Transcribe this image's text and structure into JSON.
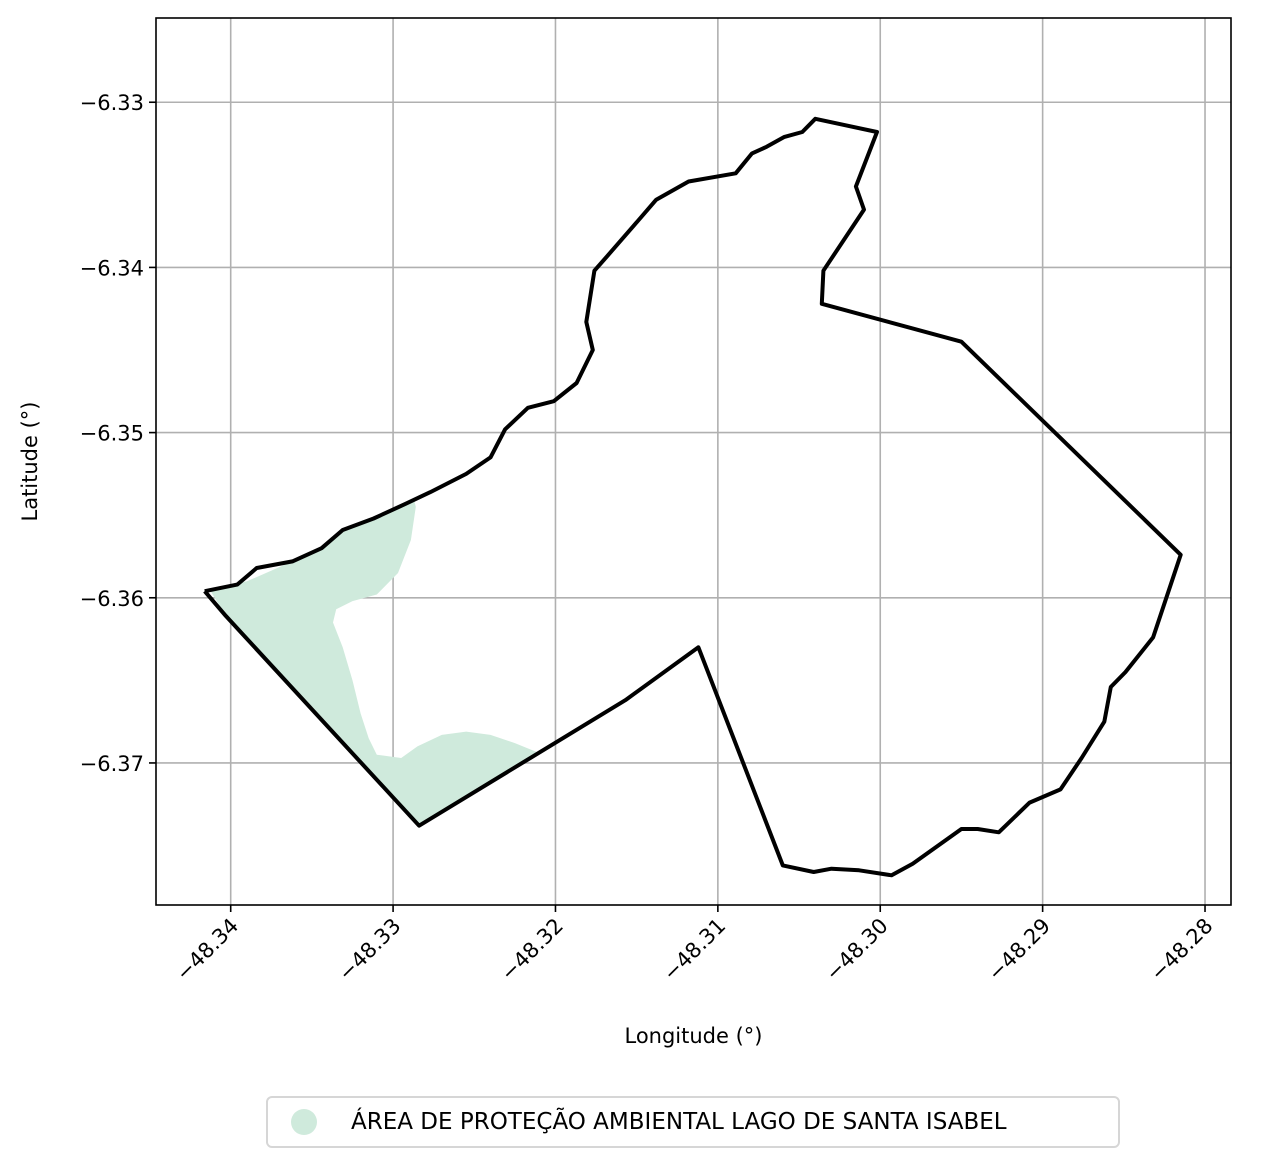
{
  "chart_data": {
    "type": "map",
    "xlabel": "Longitude (°)",
    "ylabel": "Latitude (°)",
    "xlim": [
      -48.3446,
      -48.2784
    ],
    "ylim": [
      -6.3786,
      -6.3249
    ],
    "grid": true,
    "x_ticks": [
      {
        "value": -48.34,
        "label": "−48.34"
      },
      {
        "value": -48.33,
        "label": "−48.33"
      },
      {
        "value": -48.32,
        "label": "−48.32"
      },
      {
        "value": -48.31,
        "label": "−48.31"
      },
      {
        "value": -48.3,
        "label": "−48.30"
      },
      {
        "value": -48.29,
        "label": "−48.29"
      },
      {
        "value": -48.28,
        "label": "−48.28"
      }
    ],
    "y_ticks": [
      {
        "value": -6.33,
        "label": "−6.33"
      },
      {
        "value": -6.34,
        "label": "−6.34"
      },
      {
        "value": -6.35,
        "label": "−6.35"
      },
      {
        "value": -6.36,
        "label": "−6.36"
      },
      {
        "value": -6.37,
        "label": "−6.37"
      }
    ],
    "boundary": {
      "color": "#000000",
      "coordinates": [
        [
          -48.3416,
          -6.3596
        ],
        [
          -48.3396,
          -6.3592
        ],
        [
          -48.3384,
          -6.3582
        ],
        [
          -48.3362,
          -6.3578
        ],
        [
          -48.3344,
          -6.357
        ],
        [
          -48.3331,
          -6.3559
        ],
        [
          -48.3312,
          -6.3552
        ],
        [
          -48.3292,
          -6.3543
        ],
        [
          -48.3277,
          -6.3536
        ],
        [
          -48.3255,
          -6.3525
        ],
        [
          -48.324,
          -6.3515
        ],
        [
          -48.3231,
          -6.3498
        ],
        [
          -48.3217,
          -6.3485
        ],
        [
          -48.3201,
          -6.3481
        ],
        [
          -48.3187,
          -6.347
        ],
        [
          -48.3177,
          -6.345
        ],
        [
          -48.3181,
          -6.3433
        ],
        [
          -48.3176,
          -6.3402
        ],
        [
          -48.3168,
          -6.3393
        ],
        [
          -48.3152,
          -6.3375
        ],
        [
          -48.3138,
          -6.3359
        ],
        [
          -48.3118,
          -6.3348
        ],
        [
          -48.3089,
          -6.3343
        ],
        [
          -48.3079,
          -6.3331
        ],
        [
          -48.307,
          -6.3327
        ],
        [
          -48.3059,
          -6.3321
        ],
        [
          -48.3048,
          -6.3318
        ],
        [
          -48.304,
          -6.331
        ],
        [
          -48.3002,
          -6.3318
        ],
        [
          -48.3015,
          -6.3351
        ],
        [
          -48.301,
          -6.3365
        ],
        [
          -48.3035,
          -6.3402
        ],
        [
          -48.3036,
          -6.3422
        ],
        [
          -48.295,
          -6.3445
        ],
        [
          -48.2815,
          -6.3574
        ],
        [
          -48.2832,
          -6.3624
        ],
        [
          -48.2849,
          -6.3645
        ],
        [
          -48.2858,
          -6.3654
        ],
        [
          -48.2862,
          -6.3675
        ],
        [
          -48.2876,
          -6.3697
        ],
        [
          -48.2889,
          -6.3716
        ],
        [
          -48.2908,
          -6.3724
        ],
        [
          -48.2927,
          -6.3742
        ],
        [
          -48.294,
          -6.374
        ],
        [
          -48.295,
          -6.374
        ],
        [
          -48.298,
          -6.3761
        ],
        [
          -48.2993,
          -6.3768
        ],
        [
          -48.3013,
          -6.3765
        ],
        [
          -48.303,
          -6.3764
        ],
        [
          -48.3041,
          -6.3766
        ],
        [
          -48.306,
          -6.3762
        ],
        [
          -48.3112,
          -6.363
        ],
        [
          -48.3157,
          -6.3662
        ],
        [
          -48.3284,
          -6.3738
        ],
        [
          -48.3403,
          -6.3611
        ],
        [
          -48.3416,
          -6.3596
        ]
      ]
    },
    "protected_area": {
      "name": "ÁREA DE PROTEÇÃO AMBIENTAL LAGO DE SANTA ISABEL",
      "color": "#cfeadc",
      "coordinates": [
        [
          -48.3413,
          -6.3595
        ],
        [
          -48.339,
          -6.359
        ],
        [
          -48.3362,
          -6.3578
        ],
        [
          -48.3344,
          -6.357
        ],
        [
          -48.3331,
          -6.3559
        ],
        [
          -48.3312,
          -6.3552
        ],
        [
          -48.3292,
          -6.3543
        ],
        [
          -48.3287,
          -6.3541
        ],
        [
          -48.3286,
          -6.3545
        ],
        [
          -48.3289,
          -6.3565
        ],
        [
          -48.3297,
          -6.3585
        ],
        [
          -48.331,
          -6.3598
        ],
        [
          -48.3325,
          -6.3602
        ],
        [
          -48.3335,
          -6.3607
        ],
        [
          -48.3337,
          -6.3615
        ],
        [
          -48.3331,
          -6.363
        ],
        [
          -48.3325,
          -6.365
        ],
        [
          -48.332,
          -6.367
        ],
        [
          -48.3315,
          -6.3685
        ],
        [
          -48.331,
          -6.3695
        ],
        [
          -48.3295,
          -6.3697
        ],
        [
          -48.3285,
          -6.369
        ],
        [
          -48.327,
          -6.3683
        ],
        [
          -48.3255,
          -6.3681
        ],
        [
          -48.324,
          -6.3683
        ],
        [
          -48.3225,
          -6.3688
        ],
        [
          -48.321,
          -6.3694
        ],
        [
          -48.328,
          -6.3736
        ],
        [
          -48.3284,
          -6.3738
        ],
        [
          -48.3403,
          -6.3611
        ],
        [
          -48.3413,
          -6.3595
        ]
      ]
    },
    "legend": {
      "placement": "bottom-center",
      "entries": [
        {
          "label": "ÁREA DE PROTEÇÃO AMBIENTAL LAGO DE SANTA ISABEL",
          "color": "#cfeadc",
          "marker": "circle"
        }
      ]
    }
  }
}
